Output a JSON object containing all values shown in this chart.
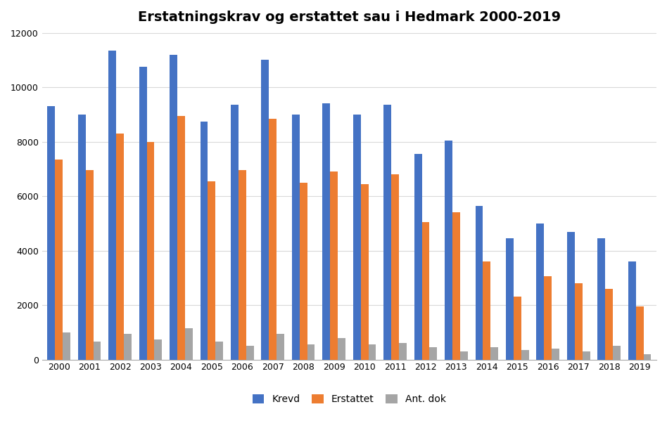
{
  "title": "Erstatningskrav og erstattet sau i Hedmark 2000-2019",
  "years": [
    2000,
    2001,
    2002,
    2003,
    2004,
    2005,
    2006,
    2007,
    2008,
    2009,
    2010,
    2011,
    2012,
    2013,
    2014,
    2015,
    2016,
    2017,
    2018,
    2019
  ],
  "krevd": [
    9300,
    9000,
    11350,
    10750,
    11200,
    8750,
    9350,
    11000,
    9000,
    9400,
    9000,
    9350,
    7550,
    8050,
    5650,
    4450,
    5000,
    4700,
    4450,
    3600
  ],
  "erstattet": [
    7350,
    6950,
    8300,
    8000,
    8950,
    6550,
    6950,
    8850,
    6500,
    6900,
    6450,
    6800,
    5050,
    5400,
    3600,
    2300,
    3050,
    2800,
    2600,
    1950
  ],
  "ant_dok": [
    1000,
    650,
    950,
    750,
    1150,
    650,
    500,
    950,
    550,
    800,
    550,
    600,
    450,
    300,
    450,
    350,
    400,
    300,
    500,
    200
  ],
  "bar_color_krevd": "#4472C4",
  "bar_color_erstattet": "#ED7D31",
  "bar_color_ant_dok": "#A5A5A5",
  "ylim": [
    0,
    12000
  ],
  "yticks": [
    0,
    2000,
    4000,
    6000,
    8000,
    10000,
    12000
  ],
  "legend_labels": [
    "Krevd",
    "Erstattet",
    "Ant. dok"
  ],
  "background_color": "#FFFFFF",
  "grid_color": "#D9D9D9"
}
